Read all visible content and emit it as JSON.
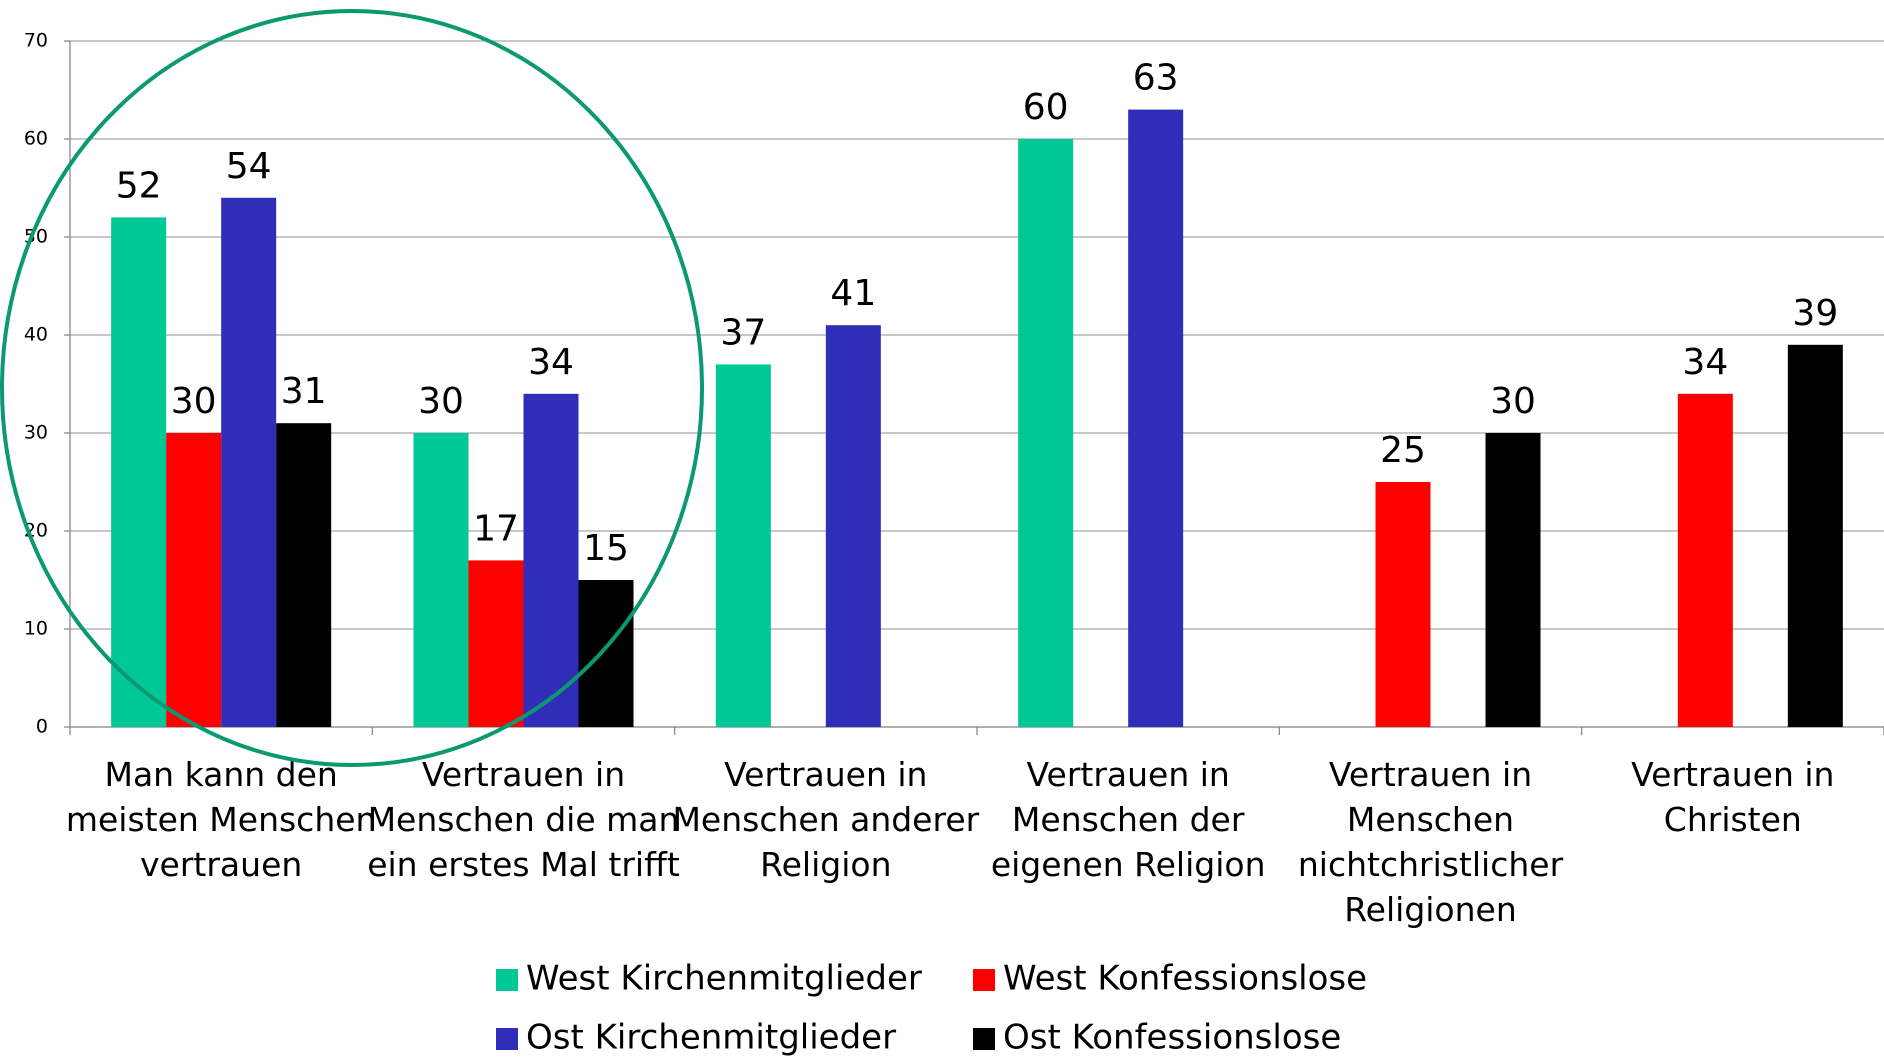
{
  "chart_data": {
    "type": "bar",
    "categories": [
      "Man kann den meisten Menschen vertrauen",
      "Vertrauen in Menschen die man ein erstes Mal trifft",
      "Vertrauen in Menschen anderer Religion",
      "Vertrauen in Menschen der eigenen Religion",
      "Vertrauen in Menschen nichtchristlicher Religionen",
      "Vertrauen in Christen"
    ],
    "series": [
      {
        "name": "West Kirchenmitglieder",
        "color": "#00c896",
        "values": [
          52,
          30,
          37,
          60,
          null,
          null
        ]
      },
      {
        "name": "West Konfessionslose",
        "color": "#ff0000",
        "values": [
          30,
          17,
          null,
          null,
          25,
          34
        ]
      },
      {
        "name": "Ost Kirchenmitglieder",
        "color": "#302db8",
        "values": [
          54,
          34,
          41,
          63,
          null,
          null
        ]
      },
      {
        "name": "Ost Konfessionslose",
        "color": "#000000",
        "values": [
          31,
          15,
          null,
          null,
          30,
          39
        ]
      }
    ],
    "ylim": [
      0,
      70
    ],
    "yticks": [
      0,
      10,
      20,
      30,
      40,
      50,
      60,
      70
    ],
    "grid": true,
    "legend": "bottom"
  }
}
